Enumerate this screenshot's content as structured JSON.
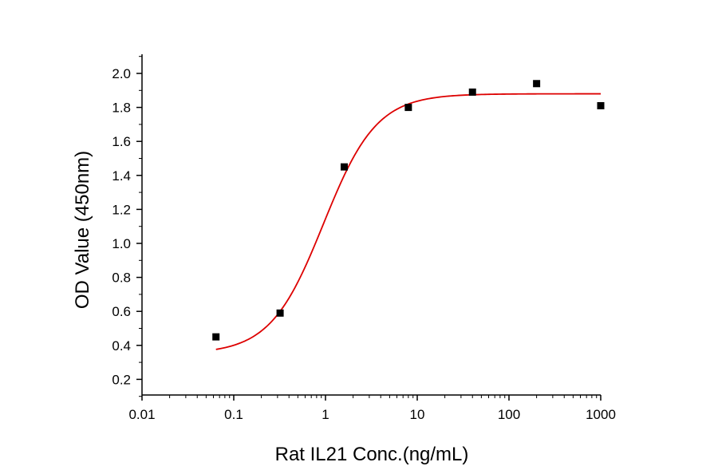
{
  "chart_data": {
    "type": "scatter",
    "title": "",
    "xlabel": "Rat IL21 Conc.(ng/mL)",
    "ylabel": "OD Value (450nm)",
    "xscale": "log",
    "xlim": [
      0.01,
      1000
    ],
    "ylim": [
      0.1,
      2.1
    ],
    "x_ticks": [
      0.01,
      0.1,
      1,
      10,
      100,
      1000
    ],
    "x_tick_labels": [
      "0.01",
      "0.1",
      "1",
      "10",
      "100",
      "1000"
    ],
    "y_ticks": [
      0.2,
      0.4,
      0.6,
      0.8,
      1.0,
      1.2,
      1.4,
      1.6,
      1.8,
      2.0
    ],
    "y_tick_labels": [
      "0.2",
      "0.4",
      "0.6",
      "0.8",
      "1.0",
      "1.2",
      "1.4",
      "1.6",
      "1.8",
      "2.0"
    ],
    "grid": false,
    "legend": "none",
    "series": [
      {
        "marker": "square",
        "color": "#000000",
        "x": [
          0.064,
          0.32,
          1.6,
          8,
          40,
          200,
          1000
        ],
        "y": [
          0.45,
          0.59,
          1.45,
          1.8,
          1.89,
          1.94,
          1.81
        ]
      }
    ],
    "fit_curve": {
      "model": "4PL",
      "color": "#dd0000",
      "x_range": [
        0.064,
        1000
      ],
      "bottom": 0.35,
      "top": 1.88,
      "ec50": 0.95,
      "hill": 1.5
    }
  }
}
